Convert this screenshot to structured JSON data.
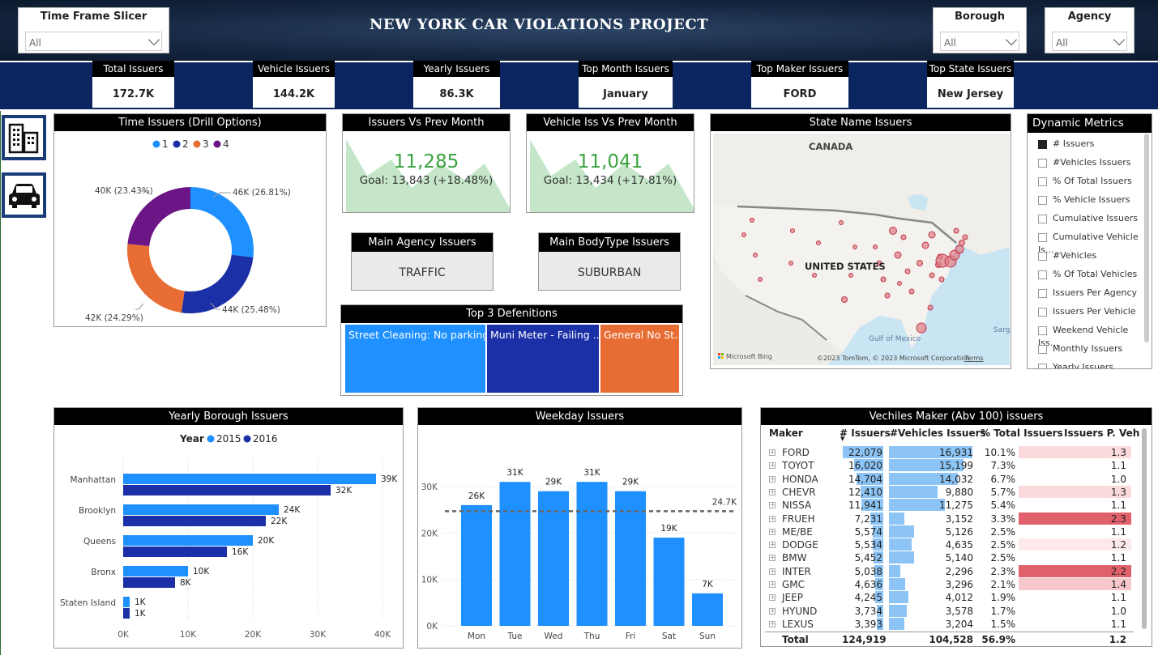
{
  "header": {
    "title": "NEW YORK CAR VIOLATIONS PROJECT"
  },
  "slicers": {
    "timeframe": {
      "label": "Time Frame Slicer",
      "value": "All"
    },
    "borough": {
      "label": "Borough",
      "value": "All"
    },
    "agency": {
      "label": "Agency",
      "value": "All"
    }
  },
  "kpis": [
    {
      "label": "Total Issuers",
      "value": "172.7K"
    },
    {
      "label": "Vehicle Issuers",
      "value": "144.2K"
    },
    {
      "label": "Yearly Issuers",
      "value": "86.3K"
    },
    {
      "label": "Top Month Issuers",
      "value": "January"
    },
    {
      "label": "Top Maker Issuers",
      "value": "FORD"
    },
    {
      "label": "Top State Issuers",
      "value": "New Jersey"
    }
  ],
  "nav": {
    "icon1": "buildings-icon",
    "icon2": "car-icon"
  },
  "donut": {
    "title": "Time Issuers (Drill Options)",
    "legend": [
      "1",
      "2",
      "3",
      "4"
    ],
    "labels": [
      "46K (26.81%)",
      "44K (25.48%)",
      "42K (24.29%)",
      "40K (23.43%)"
    ],
    "colors": [
      "#1e90ff",
      "#1b2fa6",
      "#e86d35",
      "#6b1586"
    ]
  },
  "gauges": [
    {
      "title": "Issuers Vs Prev Month",
      "value": "11,285",
      "goal": "Goal: 13,843 (+18.48%)"
    },
    {
      "title": "Vehicle Iss Vs Prev Month",
      "value": "11,041",
      "goal": "Goal: 13,434 (+17.81%)"
    }
  ],
  "main_cards": [
    {
      "title": "Main Agency Issuers",
      "value": "TRAFFIC"
    },
    {
      "title": "Main BodyType Issuers",
      "value": "SUBURBAN"
    }
  ],
  "top3": {
    "title": "Top 3 Defenitions",
    "items": [
      {
        "label": "Street Cleaning: No parking...",
        "color": "#1e90ff"
      },
      {
        "label": "Muni Meter - Failing ...",
        "color": "#1b2fa6"
      },
      {
        "label": "General No St...",
        "color": "#e86d35"
      }
    ]
  },
  "map": {
    "title": "State Name Issuers",
    "label_canada": "CANADA",
    "label_us": "UNITED STATES",
    "label_gulf": "Gulf of Mexico",
    "label_sarg": "Sarg",
    "bing": "Microsoft Bing",
    "copyright": "©2023 TomTom, © 2023 Microsoft Corporation",
    "terms": "Terms"
  },
  "dynamic_metrics": {
    "title": "Dynamic Metrics",
    "items": [
      "# Issuers",
      "#Vehicles Issuers",
      "% Of Total Issuers",
      "% Vehicle Issuers",
      "Cumulative Issuers",
      "Cumulative Vehicle Is...",
      "#Vehicles",
      "% Of Total Vehicles",
      "Issuers Per Agency",
      "Issuers Per Vehicle",
      "Weekend Vehicle Iss...",
      "Monthly Issuers",
      "Yearly Issuers"
    ],
    "selected_index": 0
  },
  "yearly_borough": {
    "title": "Yearly Borough Issuers",
    "legend_title": "Year",
    "categories": [
      "Manhattan",
      "Brooklyn",
      "Queens",
      "Bronx",
      "Staten Island"
    ],
    "x_ticks": [
      "0K",
      "10K",
      "20K",
      "30K",
      "40K"
    ]
  },
  "weekday": {
    "title": "Weekday Issuers",
    "avg_label": "24.7K",
    "y_ticks": [
      "0K",
      "10K",
      "20K",
      "30K"
    ]
  },
  "chart_data": [
    {
      "type": "bar",
      "title": "Yearly Borough Issuers",
      "orientation": "horizontal",
      "categories": [
        "Manhattan",
        "Brooklyn",
        "Queens",
        "Bronx",
        "Staten Island"
      ],
      "series": [
        {
          "name": "2015",
          "values": [
            39,
            24,
            20,
            10,
            1
          ],
          "labels": [
            "39K",
            "24K",
            "20K",
            "10K",
            "1K"
          ],
          "color": "#1e90ff"
        },
        {
          "name": "2016",
          "values": [
            32,
            22,
            16,
            8,
            1
          ],
          "labels": [
            "32K",
            "22K",
            "16K",
            "8K",
            "1K"
          ],
          "color": "#1b2fa6"
        }
      ],
      "xlim": [
        0,
        40
      ],
      "legend": "top"
    },
    {
      "type": "bar",
      "title": "Weekday Issuers",
      "categories": [
        "Mon",
        "Tue",
        "Wed",
        "Thu",
        "Fri",
        "Sat",
        "Sun"
      ],
      "values": [
        26,
        31,
        29,
        31,
        29,
        19,
        7
      ],
      "labels": [
        "26K",
        "31K",
        "29K",
        "31K",
        "29K",
        "19K",
        "7K"
      ],
      "average": 24.7,
      "ylim": [
        0,
        34
      ],
      "color": "#1e90ff"
    },
    {
      "type": "pie",
      "title": "Time Issuers (Drill Options)",
      "categories": [
        "1",
        "2",
        "3",
        "4"
      ],
      "values": [
        26.81,
        25.48,
        24.29,
        23.43
      ],
      "labels": [
        "46K (26.81%)",
        "44K (25.48%)",
        "42K (24.29%)",
        "40K (23.43%)"
      ]
    }
  ],
  "makers": {
    "title": "Vechiles Maker (Abv 100) issuers",
    "headers": [
      "Maker",
      "# Issuers",
      "#Vehicles Issuers",
      "% Total Issuers",
      "Issuers P. Veh"
    ],
    "rows": [
      {
        "maker": "FORD",
        "issuers": "22,079",
        "vehicles": "16,931",
        "pct": "10.1%",
        "ipv": "1.3",
        "iss_n": 22079,
        "veh_n": 16931,
        "heat": "#fadadc"
      },
      {
        "maker": "TOYOT",
        "issuers": "16,020",
        "vehicles": "15,199",
        "pct": "7.3%",
        "ipv": "1.1",
        "iss_n": 16020,
        "veh_n": 15199,
        "heat": ""
      },
      {
        "maker": "HONDA",
        "issuers": "14,704",
        "vehicles": "14,032",
        "pct": "6.7%",
        "ipv": "1.0",
        "iss_n": 14704,
        "veh_n": 14032,
        "heat": ""
      },
      {
        "maker": "CHEVR",
        "issuers": "12,410",
        "vehicles": "9,880",
        "pct": "5.7%",
        "ipv": "1.3",
        "iss_n": 12410,
        "veh_n": 9880,
        "heat": "#fadadc"
      },
      {
        "maker": "NISSA",
        "issuers": "11,941",
        "vehicles": "11,275",
        "pct": "5.4%",
        "ipv": "1.1",
        "iss_n": 11941,
        "veh_n": 11275,
        "heat": ""
      },
      {
        "maker": "FRUEH",
        "issuers": "7,231",
        "vehicles": "3,152",
        "pct": "3.3%",
        "ipv": "2.3",
        "iss_n": 7231,
        "veh_n": 3152,
        "heat": "#e0606c"
      },
      {
        "maker": "ME/BE",
        "issuers": "5,574",
        "vehicles": "5,126",
        "pct": "2.5%",
        "ipv": "1.1",
        "iss_n": 5574,
        "veh_n": 5126,
        "heat": ""
      },
      {
        "maker": "DODGE",
        "issuers": "5,534",
        "vehicles": "4,635",
        "pct": "2.5%",
        "ipv": "1.2",
        "iss_n": 5534,
        "veh_n": 4635,
        "heat": "#fde9ea"
      },
      {
        "maker": "BMW",
        "issuers": "5,452",
        "vehicles": "5,140",
        "pct": "2.5%",
        "ipv": "1.1",
        "iss_n": 5452,
        "veh_n": 5140,
        "heat": ""
      },
      {
        "maker": "INTER",
        "issuers": "5,038",
        "vehicles": "2,296",
        "pct": "2.3%",
        "ipv": "2.2",
        "iss_n": 5038,
        "veh_n": 2296,
        "heat": "#e0606c"
      },
      {
        "maker": "GMC",
        "issuers": "4,636",
        "vehicles": "3,296",
        "pct": "2.1%",
        "ipv": "1.4",
        "iss_n": 4636,
        "veh_n": 3296,
        "heat": "#f6c8cc"
      },
      {
        "maker": "JEEP",
        "issuers": "4,245",
        "vehicles": "4,012",
        "pct": "1.9%",
        "ipv": "1.1",
        "iss_n": 4245,
        "veh_n": 4012,
        "heat": ""
      },
      {
        "maker": "HYUND",
        "issuers": "3,734",
        "vehicles": "3,578",
        "pct": "1.7%",
        "ipv": "1.0",
        "iss_n": 3734,
        "veh_n": 3578,
        "heat": ""
      },
      {
        "maker": "LEXUS",
        "issuers": "3,393",
        "vehicles": "3,204",
        "pct": "1.5%",
        "ipv": "1.1",
        "iss_n": 3393,
        "veh_n": 3204,
        "heat": ""
      }
    ],
    "total": {
      "label": "Total",
      "issuers": "124,919",
      "vehicles": "104,528",
      "pct": "56.9%",
      "ipv": "1.2"
    }
  }
}
